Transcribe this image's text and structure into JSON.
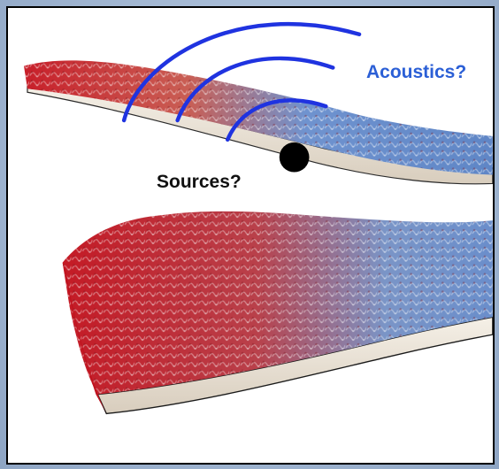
{
  "labels": {
    "acoustics": "Acoustics?",
    "sources": "Sources?"
  },
  "colors": {
    "acoustics_text": "#2b5fd6",
    "wave_arcs": "#1f33e0",
    "source_dot": "#000000",
    "vortex_red": "#c81f2a",
    "vortex_blue": "#5f86c6",
    "airfoil_surface": "#efe9df",
    "frame_border": "#000000",
    "background": "#a9bcd6"
  },
  "scene": {
    "wave_arc_count": 3,
    "airfoil_count": 2
  }
}
